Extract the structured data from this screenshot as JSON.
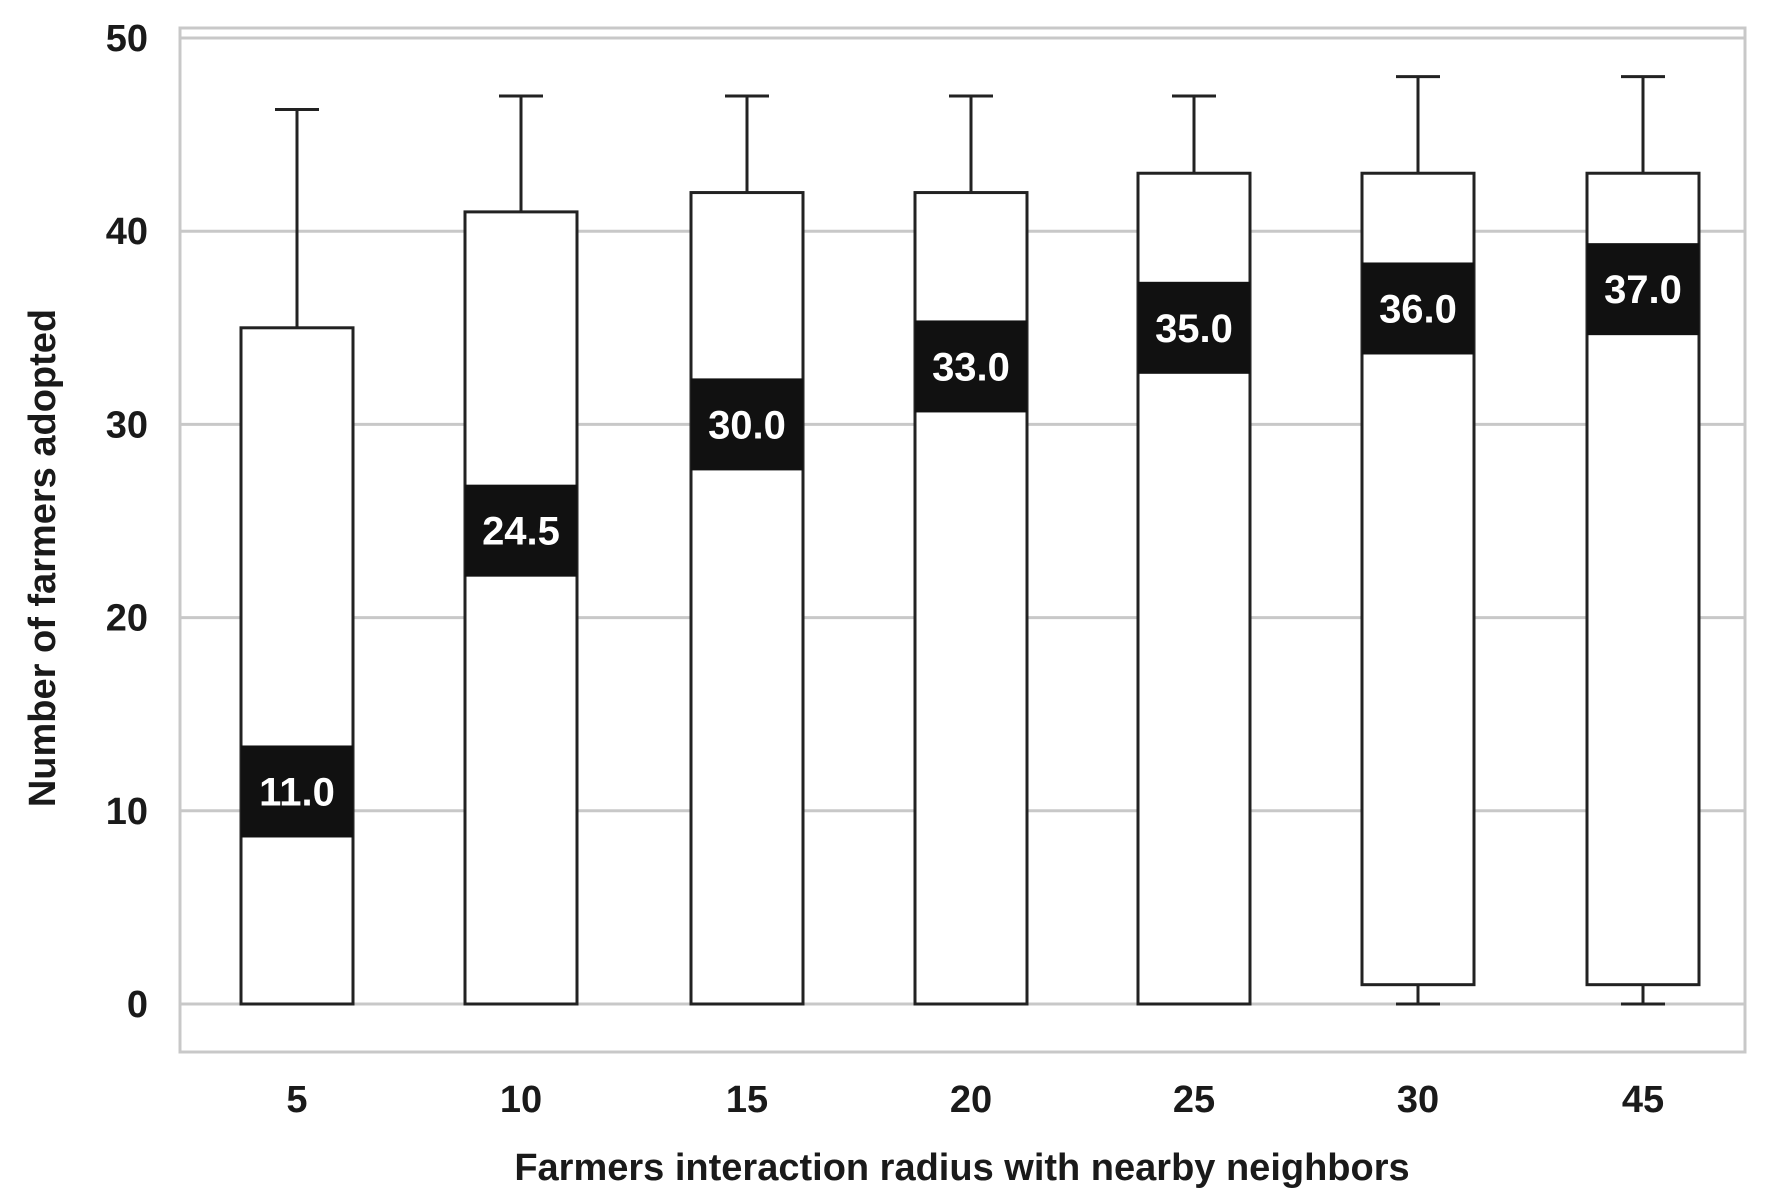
{
  "chart_data": {
    "type": "box",
    "xlabel": "Farmers interaction radius with nearby neighbors",
    "ylabel": "Number of farmers adopted",
    "ylim": [
      0,
      50
    ],
    "yticks": [
      "0",
      "10",
      "20",
      "30",
      "40",
      "50"
    ],
    "grid": true,
    "categories": [
      "5",
      "10",
      "15",
      "20",
      "25",
      "30",
      "45"
    ],
    "boxes": [
      {
        "whisker_low": 0,
        "q1": 0,
        "median": 11.0,
        "median_label": "11.0",
        "q3": 35,
        "whisker_high": 46.3
      },
      {
        "whisker_low": 0,
        "q1": 0,
        "median": 24.5,
        "median_label": "24.5",
        "q3": 41,
        "whisker_high": 47
      },
      {
        "whisker_low": 0,
        "q1": 0,
        "median": 30.0,
        "median_label": "30.0",
        "q3": 42,
        "whisker_high": 47
      },
      {
        "whisker_low": 0,
        "q1": 0,
        "median": 33.0,
        "median_label": "33.0",
        "q3": 42,
        "whisker_high": 47
      },
      {
        "whisker_low": 0,
        "q1": 0,
        "median": 35.0,
        "median_label": "35.0",
        "q3": 43,
        "whisker_high": 47
      },
      {
        "whisker_low": 0,
        "q1": 1,
        "median": 36.0,
        "median_label": "36.0",
        "q3": 43,
        "whisker_high": 48
      },
      {
        "whisker_low": 0,
        "q1": 1,
        "median": 37.0,
        "median_label": "37.0",
        "q3": 43,
        "whisker_high": 48
      }
    ]
  }
}
